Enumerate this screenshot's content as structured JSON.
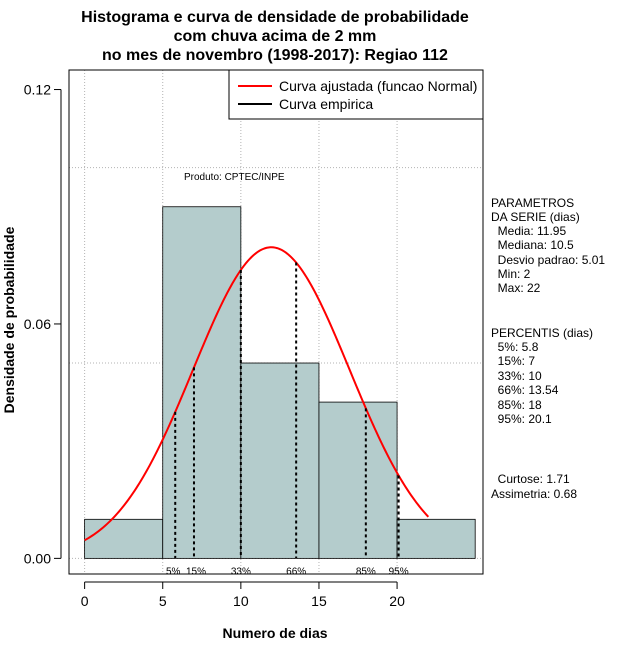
{
  "chart_data": {
    "type": "bar",
    "title_lines": [
      "Histograma e curva de densidade de probabilidade",
      "com chuva acima de 2 mm",
      "no mes de novembro (1998-2017): Regiao 112"
    ],
    "xlabel": "Numero de dias",
    "ylabel": "Densidade de probabilidade",
    "xlim": [
      -1,
      25.5
    ],
    "ylim": [
      -0.004,
      0.125
    ],
    "x_ticks": [
      0,
      5,
      10,
      15,
      20
    ],
    "y_ticks": [
      0.0,
      0.06,
      0.12
    ],
    "y_tick_labels": [
      "0.00",
      "0.06",
      "0.12"
    ],
    "grid": true,
    "grid_x": [
      0,
      5,
      10,
      15,
      20
    ],
    "grid_y": [
      0.0,
      0.05,
      0.1
    ],
    "bins": [
      {
        "from": 0,
        "to": 5,
        "density": 0.01
      },
      {
        "from": 5,
        "to": 10,
        "density": 0.09
      },
      {
        "from": 10,
        "to": 15,
        "density": 0.05
      },
      {
        "from": 15,
        "to": 20,
        "density": 0.04
      },
      {
        "from": 20,
        "to": 25,
        "density": 0.01
      }
    ],
    "bar_color": "#b4cccc",
    "curve": {
      "name": "Curva ajustada (funcao Normal)",
      "mean": 11.95,
      "sd": 5.01,
      "from": 0,
      "to": 22,
      "color": "#ff0000"
    },
    "legend": {
      "position": "top-right",
      "entries": [
        {
          "label": "Curva ajustada (funcao Normal)",
          "color": "#ff0000"
        },
        {
          "label": "Curva empirica",
          "color": "#000000"
        }
      ]
    },
    "percentiles": [
      {
        "label": "5%",
        "value": 5.8
      },
      {
        "label": "15%",
        "value": 7
      },
      {
        "label": "33%",
        "value": 10
      },
      {
        "label": "66%",
        "value": 13.54
      },
      {
        "label": "85%",
        "value": 18
      },
      {
        "label": "95%",
        "value": 20.1
      }
    ],
    "annotation": "Produto: CPTEC/INPE"
  },
  "side_panel": {
    "parametros_lines": [
      "PARAMETROS",
      "DA SERIE (dias)",
      "  Media: 11.95",
      "  Mediana: 10.5",
      "  Desvio padrao: 5.01",
      "  Min: 2",
      "  Max: 22"
    ],
    "percentis_lines": [
      "PERCENTIS (dias)",
      "  5%: 5.8",
      "  15%: 7",
      "  33%: 10",
      "  66%: 13.54",
      "  85%: 18",
      "  95%: 20.1"
    ],
    "curtose_line": "  Curtose: 1.71",
    "assimetria_line": "Assimetria: 0.68"
  }
}
